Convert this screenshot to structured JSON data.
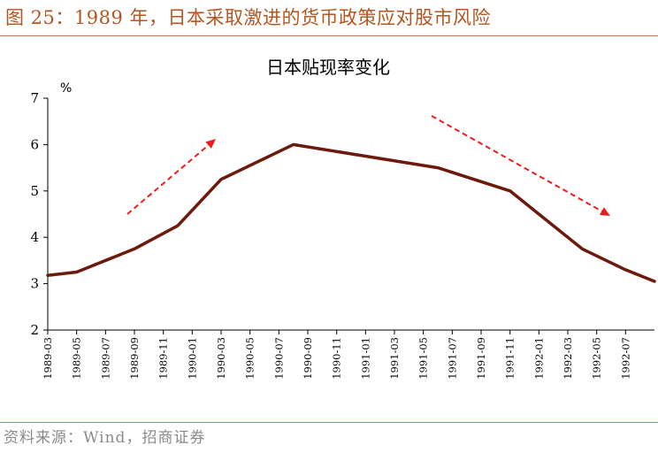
{
  "header": {
    "figure_title": "图 25：1989 年，日本采取激进的货币政策应对股市风险"
  },
  "footer": {
    "source": "资料来源：Wind，招商证券"
  },
  "chart_data": {
    "type": "line",
    "title": "日本贴现率变化",
    "ylabel": "%",
    "xlabel": "",
    "ylim": [
      2,
      7
    ],
    "yticks": [
      2,
      3,
      4,
      5,
      6,
      7
    ],
    "x_tick_labels": [
      "1989-03",
      "1989-05",
      "1989-07",
      "1989-09",
      "1989-11",
      "1990-01",
      "1990-03",
      "1990-05",
      "1990-07",
      "1990-09",
      "1990-11",
      "1991-01",
      "1991-03",
      "1991-05",
      "1991-07",
      "1991-09",
      "1991-11",
      "1992-01",
      "1992-03",
      "1992-05",
      "1992-07"
    ],
    "series": [
      {
        "color": "#6b1a0c",
        "points": [
          {
            "x": "1989-03",
            "y": 3.18
          },
          {
            "x": "1989-05",
            "y": 3.25
          },
          {
            "x": "1989-09",
            "y": 3.75
          },
          {
            "x": "1989-12",
            "y": 4.25
          },
          {
            "x": "1990-03",
            "y": 5.25
          },
          {
            "x": "1990-08",
            "y": 6.0
          },
          {
            "x": "1991-06",
            "y": 5.5
          },
          {
            "x": "1991-11",
            "y": 5.0
          },
          {
            "x": "1992-01",
            "y": 4.5
          },
          {
            "x": "1992-04",
            "y": 3.75
          },
          {
            "x": "1992-07",
            "y": 3.3
          },
          {
            "x": "1992-09",
            "y": 3.05
          }
        ]
      }
    ],
    "annotations": [
      {
        "type": "arrow",
        "style": "dashed",
        "color": "#ee1c1c",
        "direction": "up"
      },
      {
        "type": "arrow",
        "style": "dashed",
        "color": "#ee1c1c",
        "direction": "down"
      }
    ],
    "grid": false,
    "legend": "none"
  }
}
